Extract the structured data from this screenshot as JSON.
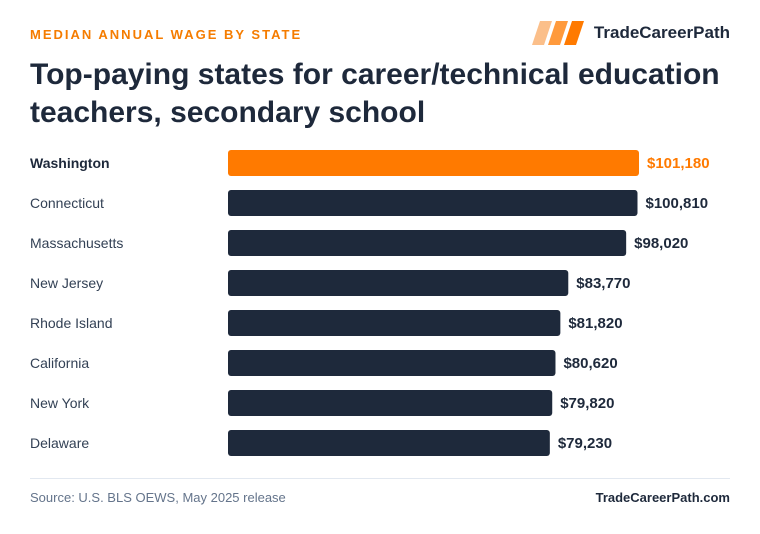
{
  "header": {
    "kicker": "MEDIAN ANNUAL WAGE BY STATE",
    "brand": "TradeCareerPath",
    "title": "Top-paying states for career/technical education teachers, secondary school"
  },
  "footer": {
    "source": "Source: U.S. BLS OEWS, May 2025 release",
    "site": "TradeCareerPath.com"
  },
  "colors": {
    "accent": "#ff7a00",
    "bar": "#1e293b",
    "label": "#334155"
  },
  "chart_data": {
    "type": "bar",
    "orientation": "horizontal",
    "categories": [
      "Washington",
      "Connecticut",
      "Massachusetts",
      "New Jersey",
      "Rhode Island",
      "California",
      "New York",
      "Delaware"
    ],
    "values": [
      101180,
      100810,
      98020,
      83770,
      81820,
      80620,
      79820,
      79230
    ],
    "value_labels": [
      "$101,180",
      "$100,810",
      "$98,020",
      "$83,770",
      "$81,820",
      "$80,620",
      "$79,820",
      "$79,230"
    ],
    "highlight": "Washington",
    "xlim": [
      0,
      101180
    ]
  }
}
